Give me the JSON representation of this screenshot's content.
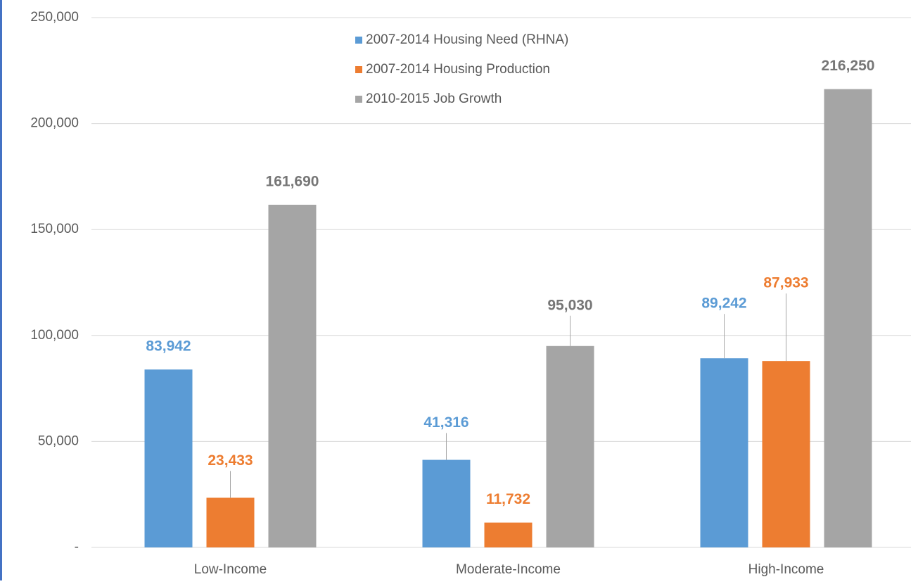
{
  "chart_data": {
    "type": "bar",
    "categories": [
      "Low-Income",
      "Moderate-Income",
      "High-Income"
    ],
    "series": [
      {
        "name": "2007-2014 Housing Need (RHNA)",
        "color": "#5b9bd5",
        "values": [
          83942,
          41316,
          89242
        ],
        "value_labels": [
          "83,942",
          "41,316",
          "89,242"
        ]
      },
      {
        "name": "2007-2014 Housing Production",
        "color": "#ed7d31",
        "values": [
          23433,
          11732,
          87933
        ],
        "value_labels": [
          "23,433",
          "11,732",
          "87,933"
        ]
      },
      {
        "name": "2010-2015 Job Growth",
        "color": "#a5a5a5",
        "values": [
          161690,
          95030,
          216250
        ],
        "value_labels": [
          "161,690",
          "95,030",
          "216,250"
        ]
      }
    ],
    "ylim": [
      0,
      250000
    ],
    "yticks": [
      {
        "value": 0,
        "label": "-"
      },
      {
        "value": 50000,
        "label": "50,000"
      },
      {
        "value": 100000,
        "label": "100,000"
      },
      {
        "value": 150000,
        "label": "150,000"
      },
      {
        "value": 200000,
        "label": "200,000"
      },
      {
        "value": 250000,
        "label": "250,000"
      }
    ],
    "grid": true,
    "legend": "top"
  }
}
